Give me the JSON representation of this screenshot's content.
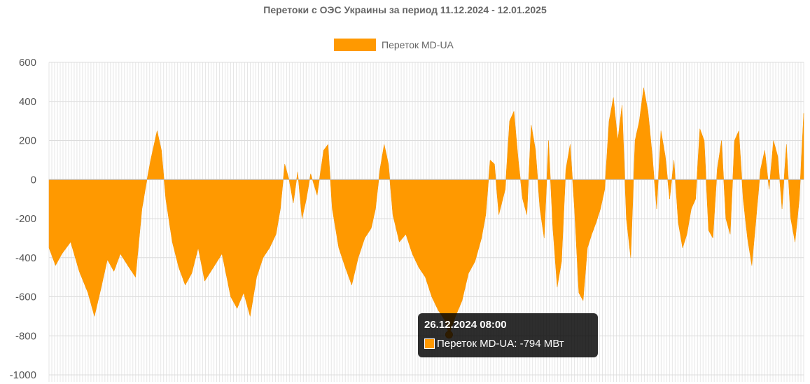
{
  "chart_data": {
    "type": "area",
    "title": "Перетоки с ОЭС Украины за период 11.12.2024 - 12.01.2025",
    "xlabel": "",
    "ylabel": "",
    "ylim": [
      -1000,
      600
    ],
    "yticks": [
      600,
      400,
      200,
      0,
      -200,
      -400,
      -600,
      -800,
      -1000
    ],
    "grid": true,
    "legend_position": "top",
    "x_start": "11.12.2024",
    "x_end": "12.01.2025",
    "series": [
      {
        "name": "Переток MD-UA",
        "color": "#FF9900",
        "points": [
          [
            0,
            -350
          ],
          [
            1.5,
            -440
          ],
          [
            3,
            -380
          ],
          [
            5,
            -320
          ],
          [
            7,
            -470
          ],
          [
            9,
            -580
          ],
          [
            10.5,
            -700
          ],
          [
            12,
            -560
          ],
          [
            13.5,
            -410
          ],
          [
            15,
            -470
          ],
          [
            16.5,
            -380
          ],
          [
            18.5,
            -450
          ],
          [
            20,
            -500
          ],
          [
            21.5,
            -150
          ],
          [
            22.5,
            -20
          ],
          [
            23.5,
            100
          ],
          [
            25,
            250
          ],
          [
            26,
            150
          ],
          [
            27,
            -100
          ],
          [
            28.5,
            -320
          ],
          [
            30,
            -450
          ],
          [
            31.5,
            -540
          ],
          [
            33,
            -480
          ],
          [
            34.5,
            -350
          ],
          [
            36,
            -520
          ],
          [
            38,
            -450
          ],
          [
            40,
            -380
          ],
          [
            42,
            -600
          ],
          [
            43.5,
            -660
          ],
          [
            45,
            -580
          ],
          [
            46.5,
            -700
          ],
          [
            48,
            -500
          ],
          [
            49.5,
            -400
          ],
          [
            51,
            -350
          ],
          [
            52.5,
            -280
          ],
          [
            53.5,
            -150
          ],
          [
            54.5,
            80
          ],
          [
            55.5,
            0
          ],
          [
            56.5,
            -120
          ],
          [
            57.5,
            40
          ],
          [
            58.5,
            -200
          ],
          [
            59.5,
            -100
          ],
          [
            60.5,
            30
          ],
          [
            62,
            -80
          ],
          [
            63.5,
            150
          ],
          [
            64.5,
            180
          ],
          [
            65.5,
            -150
          ],
          [
            67,
            -350
          ],
          [
            68.5,
            -450
          ],
          [
            70,
            -540
          ],
          [
            71.5,
            -400
          ],
          [
            73,
            -300
          ],
          [
            74.5,
            -250
          ],
          [
            75.5,
            -150
          ],
          [
            76.5,
            50
          ],
          [
            77.5,
            180
          ],
          [
            78.5,
            80
          ],
          [
            79.5,
            -180
          ],
          [
            81,
            -320
          ],
          [
            82.5,
            -280
          ],
          [
            84,
            -380
          ],
          [
            85.5,
            -450
          ],
          [
            87,
            -500
          ],
          [
            88.5,
            -600
          ],
          [
            90,
            -670
          ],
          [
            91.5,
            -720
          ],
          [
            92.5,
            -794
          ],
          [
            94,
            -700
          ],
          [
            95.5,
            -620
          ],
          [
            97,
            -480
          ],
          [
            98.5,
            -420
          ],
          [
            100,
            -300
          ],
          [
            101,
            -180
          ],
          [
            102,
            100
          ],
          [
            103,
            80
          ],
          [
            104,
            -180
          ],
          [
            105.5,
            -50
          ],
          [
            106.5,
            300
          ],
          [
            107.5,
            350
          ],
          [
            108.5,
            100
          ],
          [
            109.5,
            -100
          ],
          [
            110.5,
            -180
          ],
          [
            111.5,
            280
          ],
          [
            112.5,
            150
          ],
          [
            113.5,
            -150
          ],
          [
            114.5,
            -300
          ],
          [
            115.5,
            200
          ],
          [
            116.5,
            -250
          ],
          [
            117.5,
            -550
          ],
          [
            118.5,
            -420
          ],
          [
            119.5,
            50
          ],
          [
            120.5,
            180
          ],
          [
            121.5,
            -150
          ],
          [
            122.5,
            -580
          ],
          [
            123.5,
            -620
          ],
          [
            124.5,
            -350
          ],
          [
            125.5,
            -280
          ],
          [
            126.5,
            -220
          ],
          [
            127.5,
            -150
          ],
          [
            128.5,
            -50
          ],
          [
            129.5,
            300
          ],
          [
            130.5,
            420
          ],
          [
            131.5,
            200
          ],
          [
            132.5,
            380
          ],
          [
            133.5,
            -200
          ],
          [
            134.5,
            -400
          ],
          [
            135.5,
            200
          ],
          [
            136.5,
            300
          ],
          [
            137.5,
            470
          ],
          [
            138.5,
            350
          ],
          [
            139.5,
            120
          ],
          [
            140.5,
            -150
          ],
          [
            141.5,
            250
          ],
          [
            142.5,
            120
          ],
          [
            143.5,
            -100
          ],
          [
            144.5,
            100
          ],
          [
            145.5,
            -220
          ],
          [
            146.5,
            -350
          ],
          [
            147.5,
            -280
          ],
          [
            148.5,
            -150
          ],
          [
            149.5,
            -100
          ],
          [
            150.5,
            260
          ],
          [
            151.5,
            200
          ],
          [
            152.5,
            -260
          ],
          [
            153.5,
            -300
          ],
          [
            154.5,
            50
          ],
          [
            155.5,
            200
          ],
          [
            156.5,
            -200
          ],
          [
            157.5,
            -280
          ],
          [
            158.5,
            200
          ],
          [
            159.5,
            250
          ],
          [
            160.5,
            -100
          ],
          [
            161.5,
            -300
          ],
          [
            162.5,
            -440
          ],
          [
            163.5,
            -200
          ],
          [
            164.5,
            50
          ],
          [
            165.5,
            150
          ],
          [
            166.5,
            -50
          ],
          [
            167.5,
            200
          ],
          [
            168.5,
            120
          ],
          [
            169.5,
            -150
          ],
          [
            170.5,
            180
          ],
          [
            171.5,
            -200
          ],
          [
            172.5,
            -320
          ],
          [
            173.5,
            -100
          ],
          [
            174.5,
            340
          ]
        ]
      }
    ],
    "tooltip": {
      "date": "26.12.2024 08:00",
      "series": "Переток MD-UA",
      "value": -794,
      "unit": "МВт",
      "text": "Переток MD-UA: -794 МВт"
    }
  }
}
